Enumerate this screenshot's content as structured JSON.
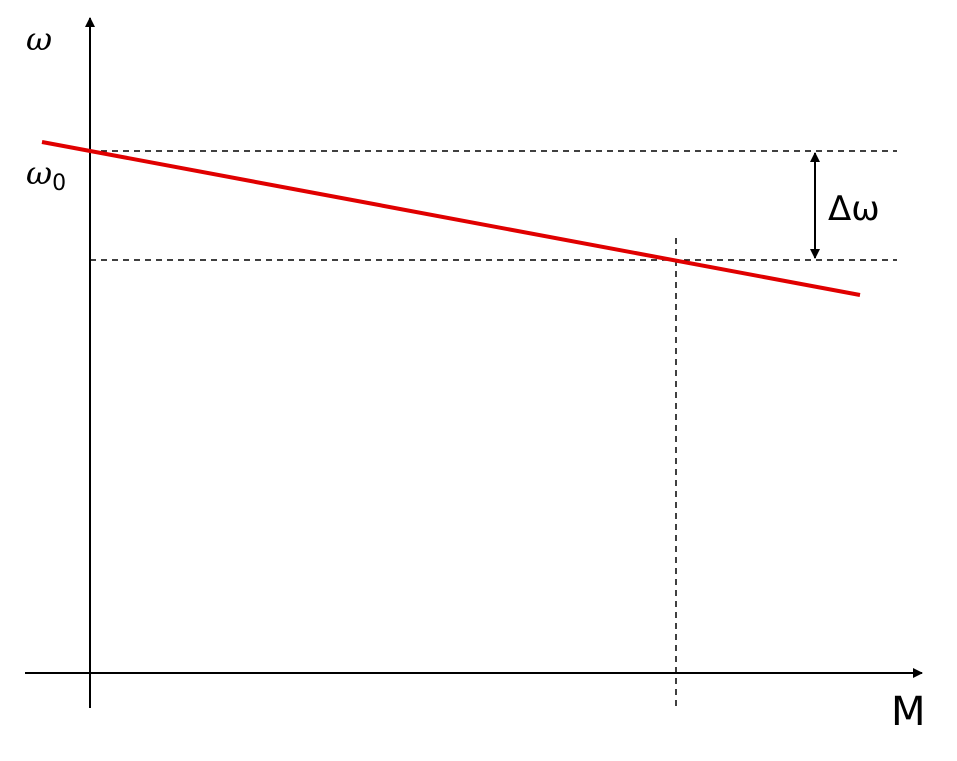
{
  "labels": {
    "y_axis": "ω",
    "omega0": {
      "symbol": "ω",
      "subscript": "0"
    },
    "delta": "Δω",
    "x_axis": "M"
  }
}
